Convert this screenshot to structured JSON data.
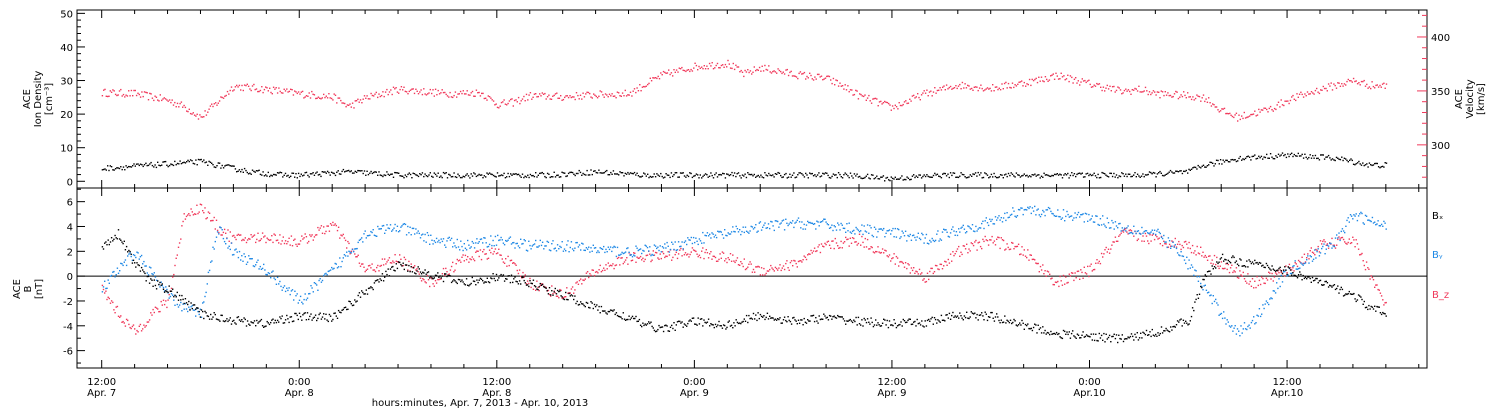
{
  "colors": {
    "black": "#000000",
    "pink": "#f0385a",
    "blue": "#1e88e5",
    "frame": "#000000"
  },
  "chart_data": [
    {
      "type": "scatter",
      "panel": "top",
      "ylabel_left": [
        "ACE",
        "Ion Density",
        "[cm⁻³]"
      ],
      "ylabel_right": [
        "ACE",
        "Velocity",
        "[km/s]"
      ],
      "ylim_left": [
        -2,
        51
      ],
      "ylim_right": [
        260,
        425
      ],
      "yticks_left": [
        0,
        10,
        20,
        30,
        40,
        50
      ],
      "yticks_right": [
        300,
        350,
        400
      ],
      "series": [
        {
          "name": "density",
          "color": "#000000",
          "axis": "left",
          "x": [
            0,
            3,
            6,
            9,
            11,
            12,
            15,
            18,
            21,
            24,
            27,
            30,
            33,
            36,
            39,
            42,
            45,
            48,
            51,
            54,
            57,
            60,
            63,
            66,
            67,
            69,
            72,
            75,
            76,
            77,
            78
          ],
          "y": [
            4,
            5,
            6,
            3,
            2,
            2,
            3,
            2,
            2,
            2,
            2,
            3,
            2,
            2,
            2,
            2,
            2,
            1,
            2,
            2,
            2,
            2,
            2,
            3,
            5,
            7,
            8,
            7,
            6,
            5,
            5
          ]
        },
        {
          "name": "velocity",
          "color": "#f0385a",
          "axis": "right",
          "x": [
            0,
            2,
            4,
            5,
            6,
            7,
            8,
            10,
            12,
            14,
            15,
            16,
            18,
            21,
            23,
            24,
            25,
            26,
            28,
            30,
            32,
            34,
            36,
            38,
            39,
            40,
            42,
            44,
            45,
            46,
            48,
            50,
            52,
            54,
            56,
            57,
            58,
            60,
            62,
            63,
            64,
            66,
            67,
            68,
            69,
            70,
            71,
            72,
            74,
            76,
            77,
            78
          ],
          "y": [
            349,
            348,
            342,
            336,
            326,
            340,
            355,
            352,
            348,
            345,
            336,
            344,
            352,
            348,
            349,
            338,
            340,
            346,
            345,
            347,
            348,
            365,
            373,
            376,
            366,
            372,
            366,
            362,
            355,
            346,
            335,
            348,
            356,
            353,
            358,
            361,
            365,
            357,
            350,
            352,
            348,
            346,
            344,
            332,
            326,
            330,
            334,
            342,
            352,
            360,
            356,
            355
          ]
        }
      ]
    },
    {
      "type": "scatter",
      "panel": "bottom",
      "ylabel": [
        "ACE",
        "B",
        "[nT]"
      ],
      "ylim": [
        -7.4,
        7.1
      ],
      "yticks": [
        -6,
        -4,
        -2,
        0,
        2,
        4,
        6
      ],
      "legend": [
        "Bₓ",
        "Bᵧ",
        "B_z"
      ],
      "series": [
        {
          "name": "Bₓ",
          "color": "#000000",
          "x": [
            0,
            1,
            2,
            3,
            4,
            5,
            6,
            8,
            10,
            11,
            12,
            14,
            16,
            18,
            20,
            22,
            24,
            26,
            28,
            30,
            32,
            33,
            34,
            36,
            38,
            40,
            42,
            44,
            46,
            48,
            50,
            52,
            54,
            56,
            58,
            60,
            62,
            64,
            66,
            67,
            68,
            70,
            72,
            74,
            76,
            77,
            78
          ],
          "y": [
            2.5,
            3.5,
            1,
            -0.5,
            -1,
            -2,
            -3,
            -3.5,
            -3.8,
            -3.4,
            -3.2,
            -3.3,
            -1.2,
            1,
            0.2,
            -0.5,
            0,
            -0.5,
            -1.5,
            -2.5,
            -3.3,
            -3.9,
            -4.2,
            -3.6,
            -3.9,
            -3.1,
            -3.6,
            -3.3,
            -3.6,
            -3.8,
            -3.7,
            -3.1,
            -3.2,
            -3.9,
            -4.6,
            -4.8,
            -5,
            -4.5,
            -3.5,
            0,
            1.5,
            1,
            0.5,
            -0.5,
            -1.5,
            -2.5,
            -3
          ]
        },
        {
          "name": "Bᵧ",
          "color": "#1e88e5",
          "x": [
            0,
            2,
            4,
            5,
            6,
            7,
            8,
            10,
            12,
            14,
            16,
            18,
            20,
            22,
            24,
            26,
            28,
            30,
            32,
            34,
            36,
            38,
            40,
            42,
            44,
            46,
            48,
            50,
            52,
            54,
            56,
            58,
            60,
            62,
            64,
            65,
            66,
            68,
            69,
            70,
            72,
            74,
            75,
            76,
            77,
            78
          ],
          "y": [
            -1,
            2,
            -1.5,
            -2.5,
            -3,
            4,
            2,
            0.5,
            -2,
            0.5,
            3.5,
            4,
            3,
            2.5,
            3,
            2.5,
            2.5,
            2.2,
            2,
            2.2,
            3,
            3.5,
            4,
            4.3,
            4.2,
            3.8,
            3.5,
            3,
            3.8,
            4.4,
            5.5,
            5,
            4.8,
            4,
            3.5,
            2.5,
            1,
            -3,
            -4.5,
            -3.5,
            0.5,
            2,
            3,
            5,
            4.5,
            4
          ]
        },
        {
          "name": "B_z",
          "color": "#f0385a",
          "x": [
            0,
            1,
            2,
            3,
            4,
            5,
            6,
            7,
            8,
            10,
            12,
            14,
            16,
            18,
            20,
            22,
            24,
            26,
            28,
            30,
            32,
            34,
            36,
            38,
            40,
            42,
            44,
            46,
            48,
            50,
            52,
            54,
            56,
            58,
            60,
            62,
            64,
            66,
            68,
            70,
            72,
            74,
            76,
            78
          ],
          "y": [
            -1,
            -3,
            -4.5,
            -3,
            -2,
            5,
            5.6,
            4,
            3,
            3.2,
            2.8,
            4.2,
            0.5,
            1.5,
            -0.5,
            1.5,
            2,
            -0.5,
            -1.5,
            0.5,
            1.5,
            1.7,
            2,
            1.5,
            0.5,
            1,
            2.5,
            3,
            1.5,
            0,
            2,
            3,
            2,
            -0.5,
            0.5,
            3.5,
            3,
            2.5,
            1,
            -0.5,
            0.5,
            2.5,
            3,
            -2.5
          ]
        }
      ]
    }
  ],
  "time_axis": {
    "start_label": "12:00 Apr. 7",
    "ticks": [
      {
        "time": "12:00",
        "date": "Apr. 7"
      },
      {
        "time": "0:00",
        "date": "Apr. 8"
      },
      {
        "time": "12:00",
        "date": "Apr. 8"
      },
      {
        "time": "0:00",
        "date": "Apr. 9"
      },
      {
        "time": "12:00",
        "date": "Apr. 9"
      },
      {
        "time": "0:00",
        "date": "Apr.10"
      },
      {
        "time": "12:00",
        "date": "Apr.10"
      }
    ],
    "tick_hours": [
      0,
      12,
      24,
      36,
      48,
      60,
      72
    ],
    "xlim_hours": [
      -1.5,
      80.5
    ],
    "xlabel": "hours:minutes, Apr.  7, 2013 - Apr. 10, 2013"
  }
}
